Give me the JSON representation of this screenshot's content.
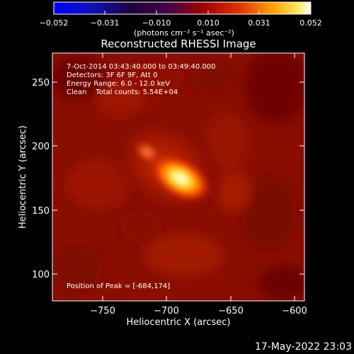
{
  "colorbar": {
    "ticks": [
      "−0.052",
      "−0.031",
      "−0.010",
      "0.010",
      "0.031",
      "0.052"
    ],
    "units_label": "(photons cm⁻² s⁻¹ asec⁻²)"
  },
  "title": "Reconstructed RHESSI Image",
  "info": {
    "time_range": "7-Oct-2014 03:43:40.000 to 03:49:40.000",
    "detectors": "Detectors: 3F 6F 9F, Att 0",
    "energy_range": "Energy Range: 6.0 - 12.0 keV",
    "method_counts": "Clean    Total counts: 5.54E+04",
    "peak": "Position of Peak = [-684,174]"
  },
  "axes": {
    "xlabel": "Heliocentric X (arcsec)",
    "ylabel": "Heliocentric Y (arcsec)",
    "xticks": [
      "−750",
      "−700",
      "−650",
      "−600"
    ],
    "yticks": [
      "250",
      "200",
      "150",
      "100"
    ],
    "xlim": [
      -786,
      -588
    ],
    "ylim": [
      80,
      275
    ]
  },
  "timestamp": "17-May-2022 23:03",
  "colors": {
    "background": "#000000",
    "text": "#ffffff"
  }
}
